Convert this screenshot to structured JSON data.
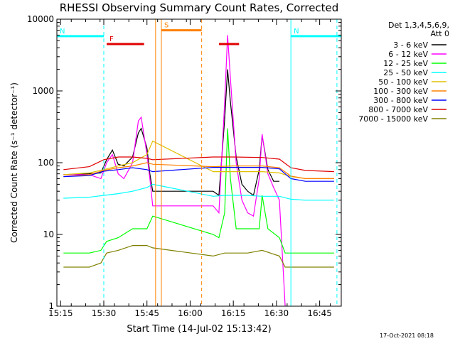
{
  "chart_data": {
    "type": "line",
    "title": "RHESSI Observing Summary Count Rates, Corrected",
    "xlabel": "Start Time (14-Jul-02 15:13:42)",
    "ylabel": "Corrected Count Rate (s⁻¹ detector⁻¹)",
    "ylog": true,
    "ylim": [
      1,
      10000
    ],
    "xlim": [
      "15:13:42",
      "16:52:30"
    ],
    "x_ticks": [
      "15:15",
      "15:30",
      "15:45",
      "16:00",
      "16:15",
      "16:30",
      "16:45"
    ],
    "y_ticks": [
      "1",
      "10",
      "100",
      "1000",
      "10000"
    ],
    "legend": {
      "header": [
        "Det 1,3,4,5,6,9,",
        "Att 0"
      ],
      "placement": "right-outside"
    },
    "series": [
      {
        "name": "3 - 6 keV",
        "color": "#000000",
        "points": [
          [
            "15:16",
            68
          ],
          [
            "15:25",
            70
          ],
          [
            "15:29",
            72
          ],
          [
            "15:31",
            110
          ],
          [
            "15:33",
            150
          ],
          [
            "15:35",
            95
          ],
          [
            "15:37",
            90
          ],
          [
            "15:40",
            120
          ],
          [
            "15:42",
            260
          ],
          [
            "15:43",
            300
          ],
          [
            "15:45",
            160
          ],
          [
            "15:46",
            70
          ],
          [
            "15:47",
            40
          ],
          [
            "16:08",
            40
          ],
          [
            "16:10",
            35
          ],
          [
            "16:12",
            400
          ],
          [
            "16:13",
            2000
          ],
          [
            "16:14",
            700
          ],
          [
            "16:16",
            120
          ],
          [
            "16:18",
            50
          ],
          [
            "16:20",
            40
          ],
          [
            "16:22",
            35
          ],
          [
            "16:24",
            80
          ],
          [
            "16:25",
            240
          ],
          [
            "16:27",
            80
          ],
          [
            "16:29",
            55
          ],
          [
            "16:31",
            55
          ]
        ]
      },
      {
        "name": "6 - 12 keV",
        "color": "#ff00ff",
        "points": [
          [
            "15:16",
            68
          ],
          [
            "15:25",
            68
          ],
          [
            "15:29",
            60
          ],
          [
            "15:31",
            100
          ],
          [
            "15:33",
            130
          ],
          [
            "15:35",
            70
          ],
          [
            "15:37",
            60
          ],
          [
            "15:40",
            100
          ],
          [
            "15:42",
            380
          ],
          [
            "15:43",
            430
          ],
          [
            "15:45",
            130
          ],
          [
            "15:46",
            60
          ],
          [
            "15:47",
            25
          ],
          [
            "16:08",
            25
          ],
          [
            "16:10",
            20
          ],
          [
            "16:12",
            700
          ],
          [
            "16:13",
            6000
          ],
          [
            "16:14",
            1500
          ],
          [
            "16:16",
            100
          ],
          [
            "16:18",
            30
          ],
          [
            "16:20",
            20
          ],
          [
            "16:22",
            18
          ],
          [
            "16:24",
            60
          ],
          [
            "16:25",
            250
          ],
          [
            "16:27",
            70
          ],
          [
            "16:29",
            45
          ],
          [
            "16:31",
            30
          ],
          [
            "16:33",
            1
          ]
        ]
      },
      {
        "name": "12 - 25 keV",
        "color": "#00ff00",
        "points": [
          [
            "15:16",
            5.5
          ],
          [
            "15:25",
            5.5
          ],
          [
            "15:29",
            6
          ],
          [
            "15:31",
            8
          ],
          [
            "15:35",
            9
          ],
          [
            "15:40",
            12
          ],
          [
            "15:45",
            12
          ],
          [
            "15:47",
            18
          ],
          [
            "16:08",
            10
          ],
          [
            "16:10",
            9
          ],
          [
            "16:12",
            20
          ],
          [
            "16:13",
            300
          ],
          [
            "16:14",
            60
          ],
          [
            "16:16",
            12
          ],
          [
            "16:20",
            12
          ],
          [
            "16:24",
            12
          ],
          [
            "16:25",
            35
          ],
          [
            "16:27",
            12
          ],
          [
            "16:31",
            9
          ],
          [
            "16:33",
            5.5
          ],
          [
            "16:40",
            5.5
          ],
          [
            "16:50",
            5.5
          ]
        ]
      },
      {
        "name": "25 - 50 keV",
        "color": "#00ffff",
        "points": [
          [
            "15:16",
            32
          ],
          [
            "15:25",
            33
          ],
          [
            "15:30",
            35
          ],
          [
            "15:35",
            37
          ],
          [
            "15:40",
            40
          ],
          [
            "15:45",
            45
          ],
          [
            "15:47",
            50
          ],
          [
            "16:08",
            34
          ],
          [
            "16:12",
            35
          ],
          [
            "16:20",
            35
          ],
          [
            "16:25",
            34
          ],
          [
            "16:31",
            34
          ],
          [
            "16:35",
            31
          ],
          [
            "16:40",
            30
          ],
          [
            "16:50",
            30
          ]
        ]
      },
      {
        "name": "50 - 100 keV",
        "color": "#e0c000",
        "points": [
          [
            "15:16",
            68
          ],
          [
            "15:25",
            72
          ],
          [
            "15:30",
            80
          ],
          [
            "15:35",
            90
          ],
          [
            "15:40",
            100
          ],
          [
            "15:45",
            130
          ],
          [
            "15:47",
            200
          ],
          [
            "16:08",
            75
          ],
          [
            "16:15",
            75
          ],
          [
            "16:25",
            75
          ],
          [
            "16:31",
            72
          ],
          [
            "16:35",
            64
          ],
          [
            "16:40",
            60
          ],
          [
            "16:50",
            60
          ]
        ]
      },
      {
        "name": "100 - 300 keV",
        "color": "#ff8000",
        "points": [
          [
            "15:16",
            64
          ],
          [
            "15:25",
            68
          ],
          [
            "15:30",
            78
          ],
          [
            "15:35",
            85
          ],
          [
            "15:40",
            90
          ],
          [
            "15:45",
            100
          ],
          [
            "15:47",
            95
          ],
          [
            "16:08",
            88
          ],
          [
            "16:15",
            90
          ],
          [
            "16:25",
            90
          ],
          [
            "16:31",
            85
          ],
          [
            "16:35",
            65
          ],
          [
            "16:40",
            60
          ],
          [
            "16:50",
            60
          ]
        ]
      },
      {
        "name": "300 - 800 keV",
        "color": "#0000ff",
        "points": [
          [
            "15:16",
            64
          ],
          [
            "15:25",
            66
          ],
          [
            "15:30",
            76
          ],
          [
            "15:35",
            80
          ],
          [
            "15:40",
            85
          ],
          [
            "15:45",
            80
          ],
          [
            "15:47",
            75
          ],
          [
            "16:08",
            86
          ],
          [
            "16:15",
            86
          ],
          [
            "16:25",
            86
          ],
          [
            "16:31",
            82
          ],
          [
            "16:35",
            60
          ],
          [
            "16:40",
            55
          ],
          [
            "16:50",
            55
          ]
        ]
      },
      {
        "name": "800 - 7000 keV",
        "color": "#e00000",
        "points": [
          [
            "15:16",
            80
          ],
          [
            "15:25",
            88
          ],
          [
            "15:30",
            110
          ],
          [
            "15:35",
            120
          ],
          [
            "15:40",
            120
          ],
          [
            "15:45",
            115
          ],
          [
            "15:47",
            110
          ],
          [
            "16:08",
            120
          ],
          [
            "16:15",
            120
          ],
          [
            "16:25",
            118
          ],
          [
            "16:31",
            112
          ],
          [
            "16:35",
            85
          ],
          [
            "16:40",
            78
          ],
          [
            "16:50",
            75
          ]
        ]
      },
      {
        "name": "7000 - 15000 keV",
        "color": "#808000",
        "points": [
          [
            "15:16",
            3.5
          ],
          [
            "15:25",
            3.5
          ],
          [
            "15:29",
            4
          ],
          [
            "15:31",
            5.5
          ],
          [
            "15:35",
            6
          ],
          [
            "15:40",
            7
          ],
          [
            "15:45",
            7
          ],
          [
            "15:47",
            6.5
          ],
          [
            "16:08",
            5
          ],
          [
            "16:12",
            5.5
          ],
          [
            "16:20",
            5.5
          ],
          [
            "16:25",
            6
          ],
          [
            "16:31",
            5
          ],
          [
            "16:33",
            3.5
          ],
          [
            "16:40",
            3.5
          ],
          [
            "16:50",
            3.5
          ]
        ]
      }
    ],
    "state_bars": [
      {
        "label": "N",
        "color": "#00ffff",
        "start": "15:13:42",
        "end": "15:30",
        "level": 5800
      },
      {
        "label": "N",
        "color": "#00ffff",
        "start": "16:35",
        "end": "16:52:30",
        "level": 5800
      },
      {
        "label": "F",
        "color": "#e00000",
        "start": "15:31",
        "end": "15:44",
        "level": 4500
      },
      {
        "label": "S",
        "color": "#ff8000",
        "start": "15:50",
        "end": "16:04",
        "level": 7000
      },
      {
        "label": "",
        "color": "#e00000",
        "start": "16:10",
        "end": "16:17",
        "level": 4500
      }
    ],
    "markers": [
      {
        "time": "15:13:42",
        "color": "#00ffff",
        "dashed": false
      },
      {
        "time": "15:30",
        "color": "#00ffff",
        "dashed": true
      },
      {
        "time": "15:48",
        "color": "#ff8000",
        "dashed": false
      },
      {
        "time": "15:50",
        "color": "#ff8000",
        "dashed": false
      },
      {
        "time": "16:04",
        "color": "#ff8000",
        "dashed": true
      },
      {
        "time": "16:35",
        "color": "#00ffff",
        "dashed": false
      },
      {
        "time": "16:51",
        "color": "#00ffff",
        "dashed": true
      }
    ],
    "data_gap": [
      "15:47",
      "16:08"
    ],
    "footer": "17-Oct-2021 08:18",
    "grid": false
  }
}
